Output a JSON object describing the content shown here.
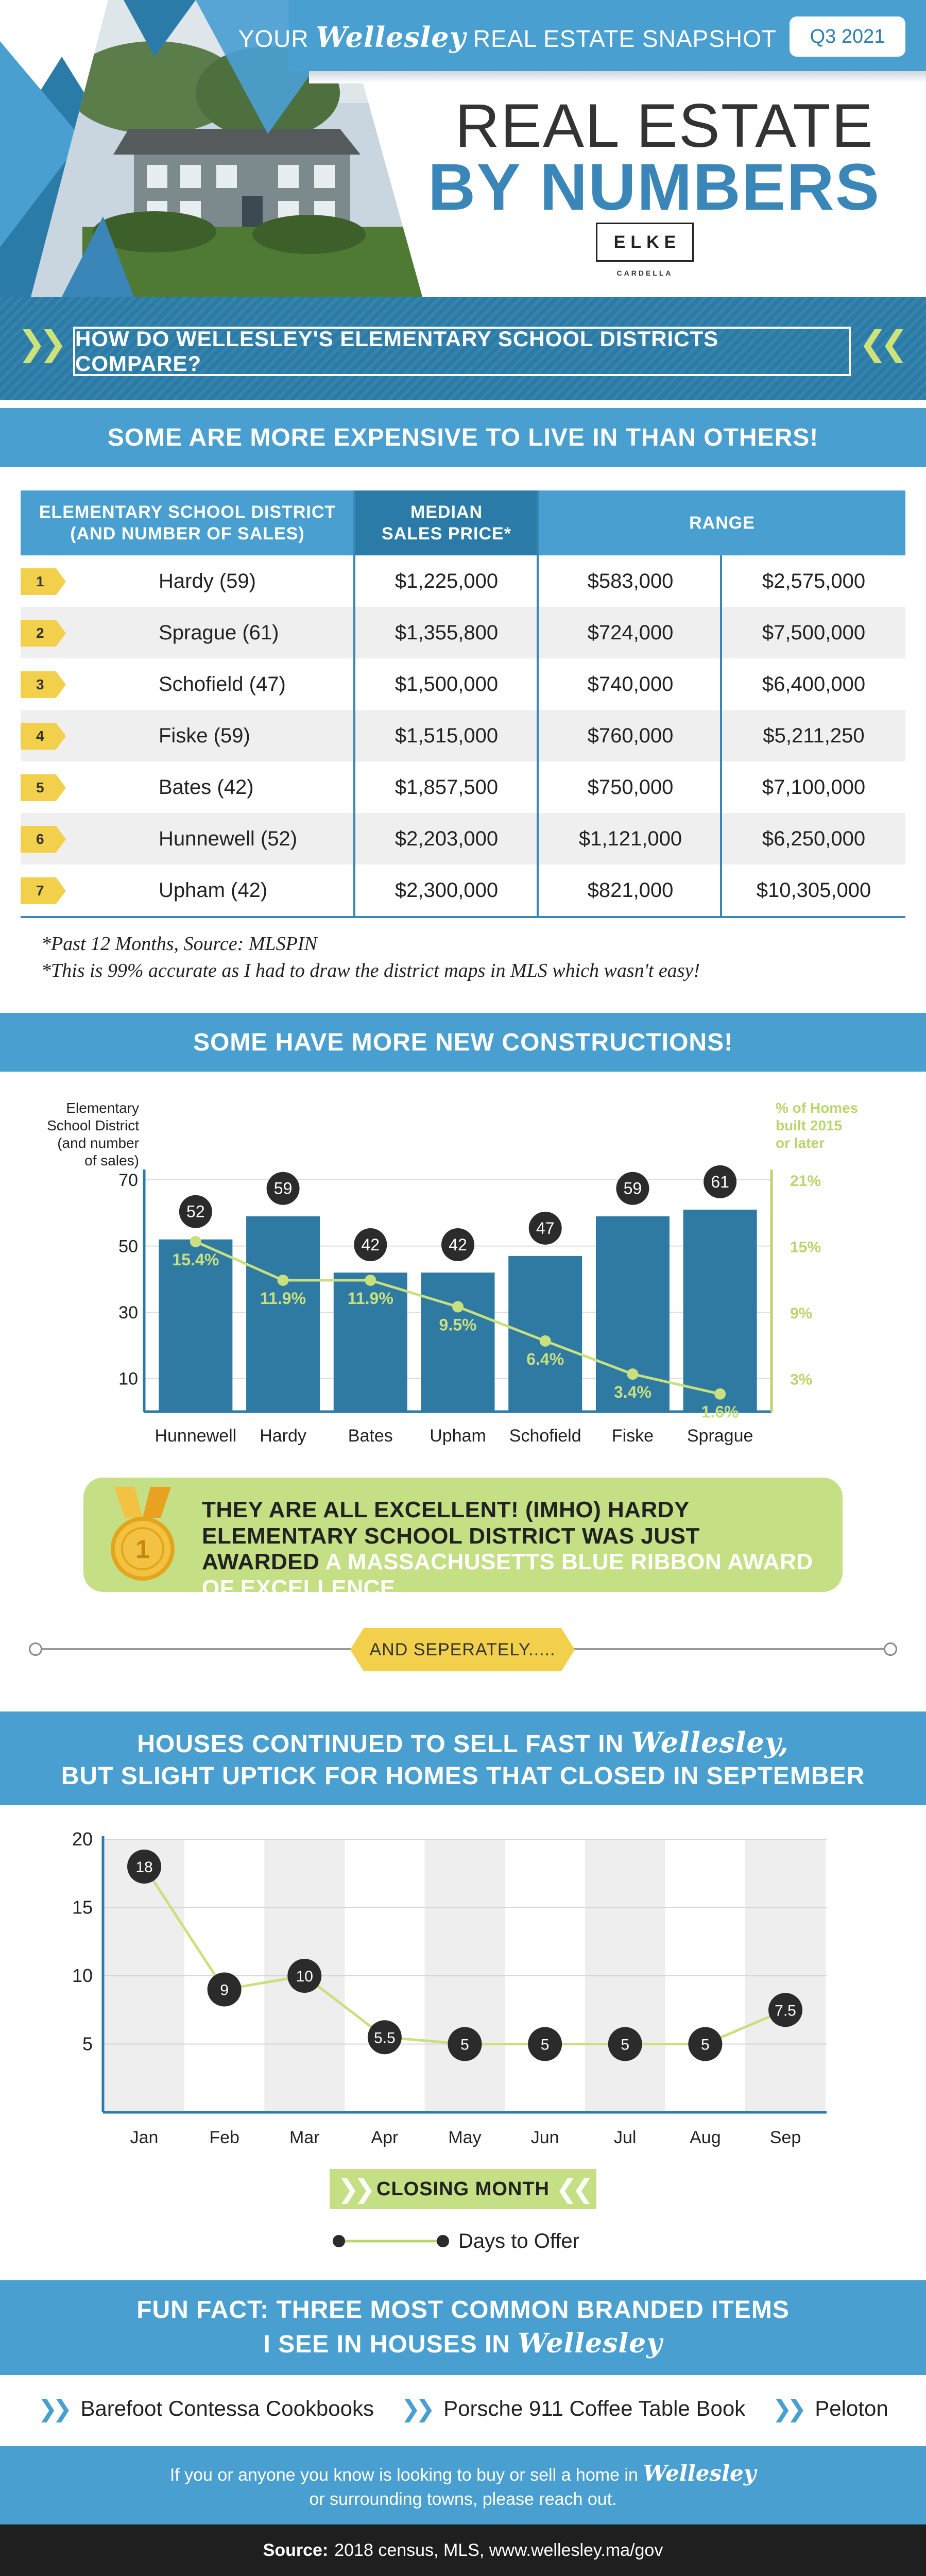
{
  "header": {
    "snapshot_prefix": "YOUR",
    "snapshot_town": "Wellesley",
    "snapshot_suffix": "REAL ESTATE SNAPSHOT",
    "quarter": "Q3 2021",
    "title_line1": "REAL ESTATE",
    "title_line2": "BY NUMBERS",
    "logo": "ELKE",
    "logo_sub": "CARDELLA"
  },
  "question": "HOW DO WELLESLEY'S ELEMENTARY SCHOOL DISTRICTS COMPARE?",
  "section1_title": "SOME ARE MORE EXPENSIVE TO LIVE IN THAN OTHERS!",
  "table": {
    "headers": {
      "district_line1": "ELEMENTARY SCHOOL DISTRICT",
      "district_line2": "(AND NUMBER OF SALES)",
      "median_line1": "MEDIAN",
      "median_line2": "SALES PRICE*",
      "range": "RANGE"
    },
    "rows": [
      {
        "rank": "1",
        "district": "Hardy (59)",
        "median": "$1,225,000",
        "low": "$583,000",
        "high": "$2,575,000"
      },
      {
        "rank": "2",
        "district": "Sprague (61)",
        "median": "$1,355,800",
        "low": "$724,000",
        "high": "$7,500,000"
      },
      {
        "rank": "3",
        "district": "Schofield (47)",
        "median": "$1,500,000",
        "low": "$740,000",
        "high": "$6,400,000"
      },
      {
        "rank": "4",
        "district": "Fiske (59)",
        "median": "$1,515,000",
        "low": "$760,000",
        "high": "$5,211,250"
      },
      {
        "rank": "5",
        "district": "Bates (42)",
        "median": "$1,857,500",
        "low": "$750,000",
        "high": "$7,100,000"
      },
      {
        "rank": "6",
        "district": "Hunnewell (52)",
        "median": "$2,203,000",
        "low": "$1,121,000",
        "high": "$6,250,000"
      },
      {
        "rank": "7",
        "district": "Upham (42)",
        "median": "$2,300,000",
        "low": "$821,000",
        "high": "$10,305,000"
      }
    ]
  },
  "footnotes": {
    "line1": "*Past 12 Months, Source: MLSPIN",
    "line2": "*This is 99% accurate as I had to draw the district maps in MLS which wasn't easy!"
  },
  "section2_title": "SOME HAVE MORE NEW CONSTRUCTIONS!",
  "award": {
    "dark": "THEY ARE ALL EXCELLENT! (IMHO) HARDY ELEMENTARY SCHOOL DISTRICT WAS JUST AWARDED",
    "light": "A MASSACHUSETTS BLUE RIBBON AWARD OF EXCELLENCE",
    "medal_number": "1"
  },
  "separately": "AND SEPERATELY.....",
  "section3": {
    "line1_prefix": "HOUSES CONTINUED TO SELL FAST IN",
    "town": "Wellesley,",
    "line2": "BUT SLIGHT UPTICK FOR HOMES THAT CLOSED IN SEPTEMBER"
  },
  "closing_month_label": "CLOSING MONTH",
  "legend_days": "Days to Offer",
  "funfact": {
    "line1": "FUN FACT: THREE MOST COMMON BRANDED ITEMS",
    "line2_prefix": "I SEE IN HOUSES IN",
    "town": "Wellesley",
    "items": [
      "Barefoot Contessa Cookbooks",
      "Porsche 911 Coffee Table Book",
      "Peloton"
    ]
  },
  "contact": {
    "line1_prefix": "If you or anyone you know is looking to buy or sell a home in",
    "town": "Wellesley",
    "line2": "or surrounding towns, please reach out."
  },
  "source": {
    "label": "Source:",
    "text": "2018 census, MLS, www.wellesley.ma/gov"
  },
  "colors": {
    "blue": "#4a9fd1",
    "dark_blue": "#2a7ba7",
    "bar": "#2f7aa3",
    "green": "#c5df84",
    "line_green": "#b9d56c",
    "yellow": "#f3d04c"
  },
  "chart_data": [
    {
      "type": "bar",
      "title": "SOME HAVE MORE NEW CONSTRUCTIONS!",
      "ylabel": "Elementary School District (and number of sales)",
      "y2label": "% of Homes built 2015 or later",
      "categories": [
        "Hunnewell",
        "Hardy",
        "Bates",
        "Upham",
        "Schofield",
        "Fiske",
        "Sprague"
      ],
      "values": [
        52,
        59,
        42,
        42,
        47,
        59,
        61
      ],
      "value_labels": [
        "52",
        "59",
        "42",
        "42",
        "47",
        "59",
        "61"
      ],
      "line_values": [
        15.4,
        11.9,
        11.9,
        9.5,
        6.4,
        3.4,
        1.6
      ],
      "line_labels": [
        "15.4%",
        "11.9%",
        "11.9%",
        "9.5%",
        "6.4%",
        "3.4%",
        "1.6%"
      ],
      "yticks": [
        "10",
        "30",
        "50",
        "70"
      ],
      "y2ticks": [
        "3%",
        "9%",
        "15%",
        "21%"
      ],
      "ylim": [
        0,
        70
      ],
      "y2lim": [
        0,
        21
      ]
    },
    {
      "type": "line",
      "title": "HOUSES CONTINUED TO SELL FAST IN Wellesley, BUT SLIGHT UPTICK FOR HOMES THAT CLOSED IN SEPTEMBER",
      "xlabel": "CLOSING MONTH",
      "series_name": "Days to Offer",
      "x": [
        "Jan",
        "Feb",
        "Mar",
        "Apr",
        "May",
        "Jun",
        "Jul",
        "Aug",
        "Sep"
      ],
      "values": [
        18,
        9,
        10,
        5.5,
        5,
        5,
        5,
        5,
        7.5
      ],
      "value_labels": [
        "18",
        "9",
        "10",
        "5.5",
        "5",
        "5",
        "5",
        "5",
        "7.5"
      ],
      "yticks": [
        "5",
        "10",
        "15",
        "20"
      ],
      "ylim": [
        0,
        20
      ]
    }
  ]
}
